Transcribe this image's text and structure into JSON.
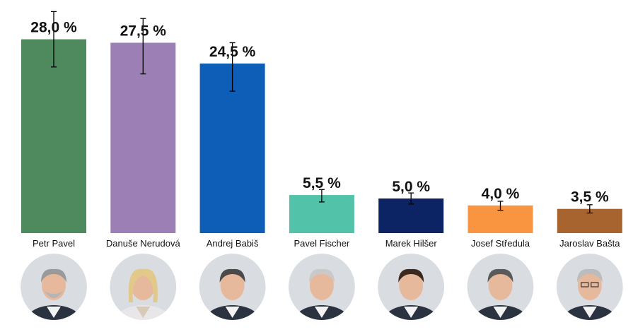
{
  "chart_data": {
    "type": "bar",
    "title": "",
    "xlabel": "",
    "ylabel": "",
    "ylim": [
      0,
      30
    ],
    "grid": false,
    "legend": "none",
    "categories": [
      "Petr Pavel",
      "Danuše Nerudová",
      "Andrej Babiš",
      "Pavel Fischer",
      "Marek Hilšer",
      "Josef Středula",
      "Jaroslav Bašta"
    ],
    "values": [
      28.0,
      27.5,
      24.5,
      5.5,
      5.0,
      4.0,
      3.5
    ],
    "value_labels": [
      "28,0 %",
      "27,5 %",
      "24,5 %",
      "5,5 %",
      "5,0 %",
      "4,0 %",
      "3,5 %"
    ],
    "error_low": [
      24.0,
      23.0,
      20.5,
      4.5,
      4.2,
      3.3,
      2.9
    ],
    "error_high": [
      32.0,
      31.0,
      27.5,
      6.3,
      5.8,
      4.6,
      4.1
    ],
    "colors": [
      "#4e8a5e",
      "#9c7fb4",
      "#0e5db7",
      "#52c2a8",
      "#0c2364",
      "#f99441",
      "#a8642e"
    ],
    "photo_icons": [
      "portrait-petr-pavel-icon",
      "portrait-danuse-nerudova-icon",
      "portrait-andrej-babis-icon",
      "portrait-pavel-fischer-icon",
      "portrait-marek-hilser-icon",
      "portrait-josef-stredula-icon",
      "portrait-jaroslav-basta-icon"
    ]
  }
}
